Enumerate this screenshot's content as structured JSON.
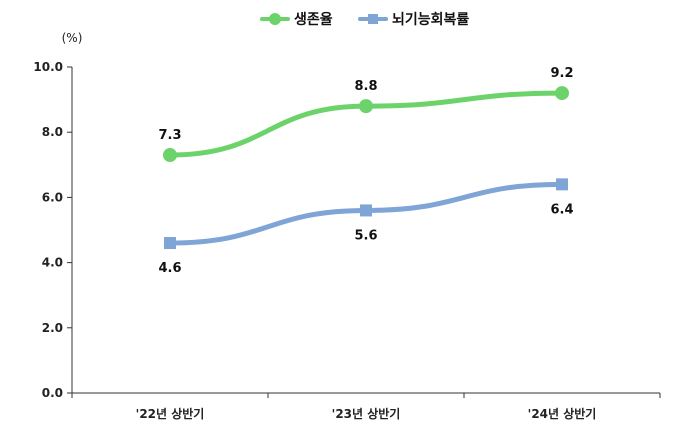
{
  "chart_data": {
    "type": "line",
    "categories": [
      "'22년 상반기",
      "'23년 상반기",
      "'24년 상반기"
    ],
    "series": [
      {
        "name": "생존율",
        "values": [
          7.3,
          8.8,
          9.2
        ],
        "color": "#6CD36A",
        "marker": "circle",
        "label_position": "above"
      },
      {
        "name": "뇌기능회복률",
        "values": [
          4.6,
          5.6,
          6.4
        ],
        "color": "#7FA4D6",
        "marker": "square",
        "label_position": "below"
      }
    ],
    "y_unit": "(%)",
    "ylim": [
      0,
      10
    ],
    "yticks": [
      "0.0",
      "2.0",
      "4.0",
      "6.0",
      "8.0",
      "10.0"
    ],
    "grid": false,
    "legend_position": "top-center"
  }
}
